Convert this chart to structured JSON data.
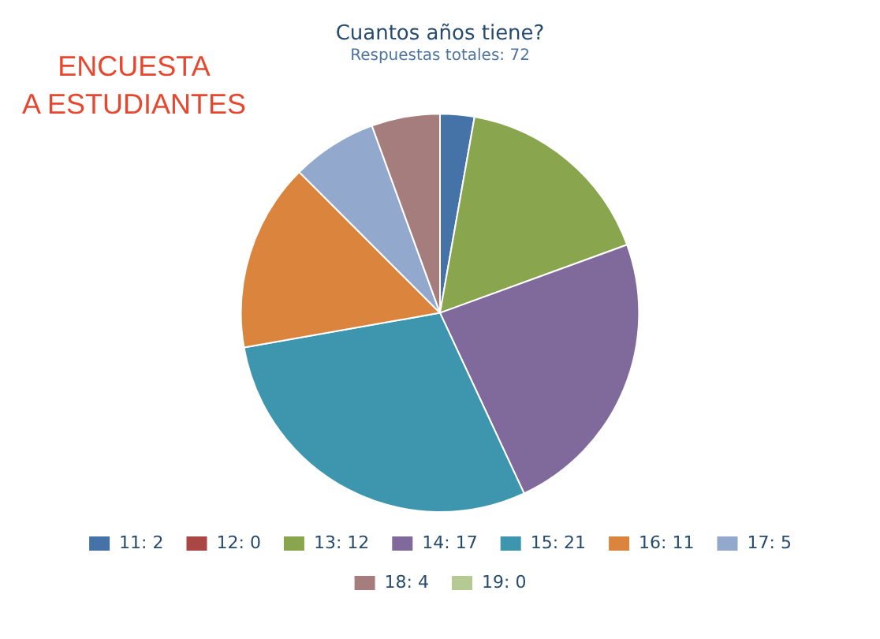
{
  "chart_data": {
    "type": "pie",
    "title": "Cuantos años tiene?",
    "subtitle": "Respuestas totales: 72",
    "categories": [
      "11: 2",
      "12: 0",
      "13: 12",
      "14: 17",
      "15: 21",
      "16: 11",
      "17: 5",
      "18: 4",
      "19: 0"
    ],
    "values": [
      2,
      0,
      12,
      17,
      21,
      11,
      5,
      4,
      0
    ],
    "colors": [
      "#4572a7",
      "#aa4643",
      "#89a54e",
      "#80699b",
      "#3d96ae",
      "#db843d",
      "#92a8cd",
      "#a47d7c",
      "#b5ca92"
    ],
    "legend": "bottom",
    "annotations": [
      "ENCUESTA\nA ESTUDIANTES"
    ]
  }
}
